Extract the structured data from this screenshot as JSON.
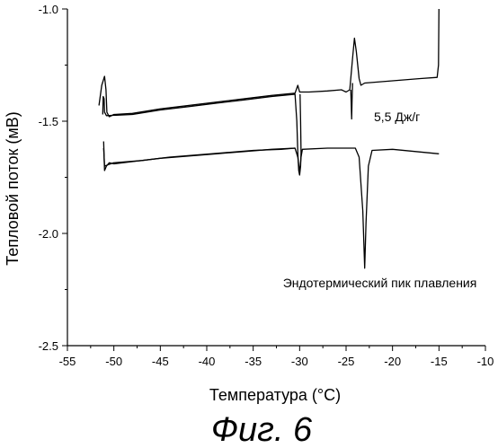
{
  "chart_data": {
    "type": "line",
    "title": "",
    "xlabel": "Температура (°C)",
    "ylabel": "Тепловой поток (мВ)",
    "xlim": [
      -55,
      -10
    ],
    "ylim": [
      -2.5,
      -1.0
    ],
    "x_ticks": [
      -55,
      -50,
      -45,
      -40,
      -35,
      -30,
      -25,
      -20,
      -15,
      -10
    ],
    "y_ticks": [
      -2.5,
      -2.0,
      -1.5,
      -1.0
    ],
    "x_tick_labels": [
      "-55",
      "-50",
      "-45",
      "-40",
      "-35",
      "-30",
      "-25",
      "-20",
      "-15",
      "-10"
    ],
    "y_tick_labels": [
      "-2.5",
      "-2.0",
      "-1.5",
      "-1.0"
    ],
    "grid": false,
    "legend": "none",
    "series": [
      {
        "values": [
          [
            -51.6,
            -1.43
          ],
          [
            -51.3,
            -1.34
          ],
          [
            -51.0,
            -1.3
          ],
          [
            -50.85,
            -1.36
          ],
          [
            -50.75,
            -1.46
          ],
          [
            -50.5,
            -1.48
          ],
          [
            -50.0,
            -1.47
          ],
          [
            -48.0,
            -1.465
          ],
          [
            -45.0,
            -1.445
          ],
          [
            -42.0,
            -1.43
          ],
          [
            -39.0,
            -1.415
          ],
          [
            -36.0,
            -1.4
          ],
          [
            -33.0,
            -1.385
          ],
          [
            -30.5,
            -1.375
          ],
          [
            -30.2,
            -1.34
          ],
          [
            -30.0,
            -1.37
          ],
          [
            -29.0,
            -1.37
          ],
          [
            -27.0,
            -1.365
          ],
          [
            -25.5,
            -1.36
          ],
          [
            -25.0,
            -1.37
          ],
          [
            -24.6,
            -1.36
          ],
          [
            -24.3,
            -1.22
          ],
          [
            -24.1,
            -1.13
          ],
          [
            -23.9,
            -1.19
          ],
          [
            -23.6,
            -1.31
          ],
          [
            -23.4,
            -1.34
          ],
          [
            -23.0,
            -1.33
          ],
          [
            -20.0,
            -1.32
          ],
          [
            -17.0,
            -1.31
          ],
          [
            -15.2,
            -1.305
          ],
          [
            -15.05,
            -1.25
          ],
          [
            -15.0,
            -1.0
          ]
        ]
      },
      {
        "values": [
          [
            -51.1,
            -1.59
          ],
          [
            -51.0,
            -1.72
          ],
          [
            -50.8,
            -1.7
          ],
          [
            -50.5,
            -1.685
          ],
          [
            -50.0,
            -1.69
          ],
          [
            -48.0,
            -1.68
          ],
          [
            -45.0,
            -1.665
          ],
          [
            -42.0,
            -1.655
          ],
          [
            -39.0,
            -1.645
          ],
          [
            -36.0,
            -1.635
          ],
          [
            -33.0,
            -1.625
          ],
          [
            -30.5,
            -1.62
          ],
          [
            -30.2,
            -1.66
          ],
          [
            -30.0,
            -1.73
          ],
          [
            -29.85,
            -1.66
          ],
          [
            -29.7,
            -1.625
          ],
          [
            -27.0,
            -1.62
          ],
          [
            -24.0,
            -1.62
          ],
          [
            -23.6,
            -1.66
          ],
          [
            -23.2,
            -1.9
          ],
          [
            -23.0,
            -2.155
          ],
          [
            -22.85,
            -1.95
          ],
          [
            -22.6,
            -1.7
          ],
          [
            -22.2,
            -1.63
          ],
          [
            -20.0,
            -1.625
          ],
          [
            -15.0,
            -1.645
          ]
        ]
      },
      {
        "values": [
          [
            -51.2,
            -1.47
          ],
          [
            -51.15,
            -1.39
          ],
          [
            -51.05,
            -1.4
          ],
          [
            -51.0,
            -1.46
          ],
          [
            -50.8,
            -1.475
          ],
          [
            -48.0,
            -1.47
          ],
          [
            -45.0,
            -1.45
          ],
          [
            -42.0,
            -1.435
          ],
          [
            -39.0,
            -1.42
          ],
          [
            -36.0,
            -1.405
          ],
          [
            -33.0,
            -1.39
          ],
          [
            -30.5,
            -1.38
          ],
          [
            -30.3,
            -1.5
          ],
          [
            -30.2,
            -1.64
          ],
          [
            -30.1,
            -1.72
          ],
          [
            -30.0,
            -1.74
          ],
          [
            -29.9,
            -1.7
          ],
          [
            -29.85,
            -1.64
          ],
          [
            -29.9,
            -1.5
          ],
          [
            -29.95,
            -1.38
          ]
        ]
      },
      {
        "values": [
          [
            -51.1,
            -1.62
          ],
          [
            -51.0,
            -1.7
          ],
          [
            -50.7,
            -1.695
          ],
          [
            -50.0,
            -1.685
          ],
          [
            -47.0,
            -1.675
          ],
          [
            -44.0,
            -1.66
          ],
          [
            -41.0,
            -1.65
          ],
          [
            -38.0,
            -1.64
          ],
          [
            -35.0,
            -1.63
          ],
          [
            -32.0,
            -1.625
          ],
          [
            -30.5,
            -1.62
          ]
        ]
      },
      {
        "values": [
          [
            -24.5,
            -1.36
          ],
          [
            -24.45,
            -1.42
          ],
          [
            -24.4,
            -1.49
          ],
          [
            -24.35,
            -1.4
          ],
          [
            -24.3,
            -1.33
          ]
        ]
      }
    ],
    "annotations": [
      {
        "text": "5,5 Дж/г",
        "x": -22.0,
        "y": -1.5
      },
      {
        "text": "Эндотермический пик плавления",
        "x": -31.8,
        "y": -2.24
      }
    ]
  },
  "caption": "Фиг. 6"
}
